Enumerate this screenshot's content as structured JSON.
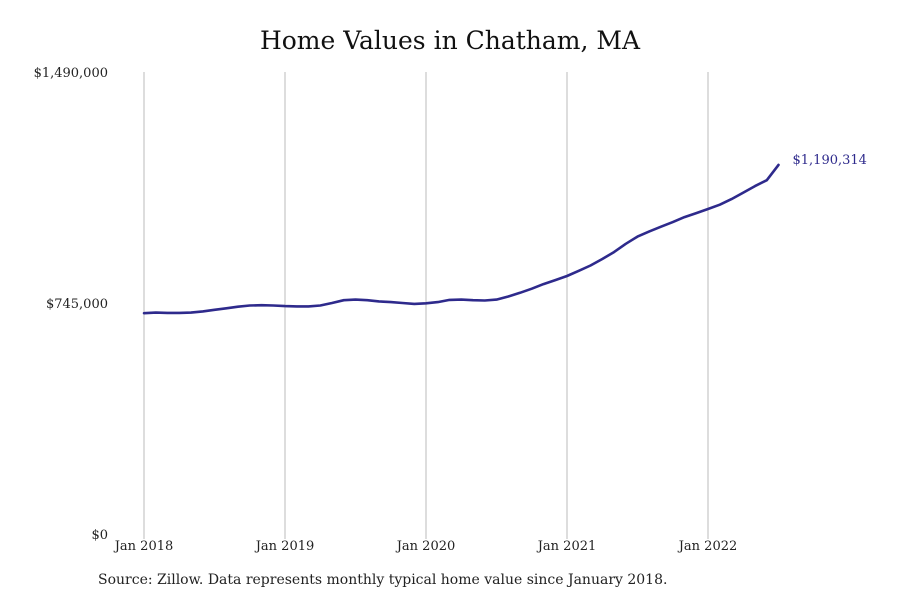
{
  "colors": {
    "line": "#2e2a8c",
    "grid": "#bbbbbb"
  },
  "chart_data": {
    "type": "line",
    "title": "Home Values in Chatham, MA",
    "xlabel": "",
    "ylabel": "",
    "grid": "vertical",
    "legend": "none",
    "x_axis_type": "date",
    "xlim": [
      "2018-01",
      "2022-07"
    ],
    "x_ticks": [
      "2018-01",
      "2019-01",
      "2020-01",
      "2021-01",
      "2022-01"
    ],
    "x_tick_labels": [
      "Jan 2018",
      "Jan 2019",
      "Jan 2020",
      "Jan 2021",
      "Jan 2022"
    ],
    "ylim": [
      0,
      1490000
    ],
    "y_ticks": [
      0,
      745000,
      1490000
    ],
    "y_tick_labels": [
      "$0",
      "$745,000",
      "$1,490,000"
    ],
    "series": [
      {
        "end_label": "$1,190,314",
        "x": [
          "2018-01",
          "2018-02",
          "2018-03",
          "2018-04",
          "2018-05",
          "2018-06",
          "2018-07",
          "2018-08",
          "2018-09",
          "2018-10",
          "2018-11",
          "2018-12",
          "2019-01",
          "2019-02",
          "2019-03",
          "2019-04",
          "2019-05",
          "2019-06",
          "2019-07",
          "2019-08",
          "2019-09",
          "2019-10",
          "2019-11",
          "2019-12",
          "2020-01",
          "2020-02",
          "2020-03",
          "2020-04",
          "2020-05",
          "2020-06",
          "2020-07",
          "2020-08",
          "2020-09",
          "2020-10",
          "2020-11",
          "2020-12",
          "2021-01",
          "2021-02",
          "2021-03",
          "2021-04",
          "2021-05",
          "2021-06",
          "2021-07",
          "2021-08",
          "2021-09",
          "2021-10",
          "2021-11",
          "2021-12",
          "2022-01",
          "2022-02",
          "2022-03",
          "2022-04",
          "2022-05",
          "2022-06",
          "2022-07"
        ],
        "values": [
          712000,
          714000,
          713000,
          713000,
          714000,
          718000,
          723000,
          728000,
          733000,
          737000,
          738000,
          737000,
          735000,
          734000,
          734000,
          737000,
          745000,
          754000,
          756000,
          754000,
          750000,
          748000,
          745000,
          742000,
          744000,
          748000,
          755000,
          756000,
          754000,
          753000,
          756000,
          766000,
          778000,
          791000,
          806000,
          819000,
          832000,
          849000,
          866000,
          887000,
          909000,
          936000,
          959000,
          976000,
          991000,
          1006000,
          1022000,
          1035000,
          1048000,
          1062000,
          1080000,
          1101000,
          1122000,
          1141000,
          1190314
        ]
      }
    ]
  },
  "footer": {
    "source": "Source: Zillow. Data represents monthly typical home value since January 2018."
  }
}
